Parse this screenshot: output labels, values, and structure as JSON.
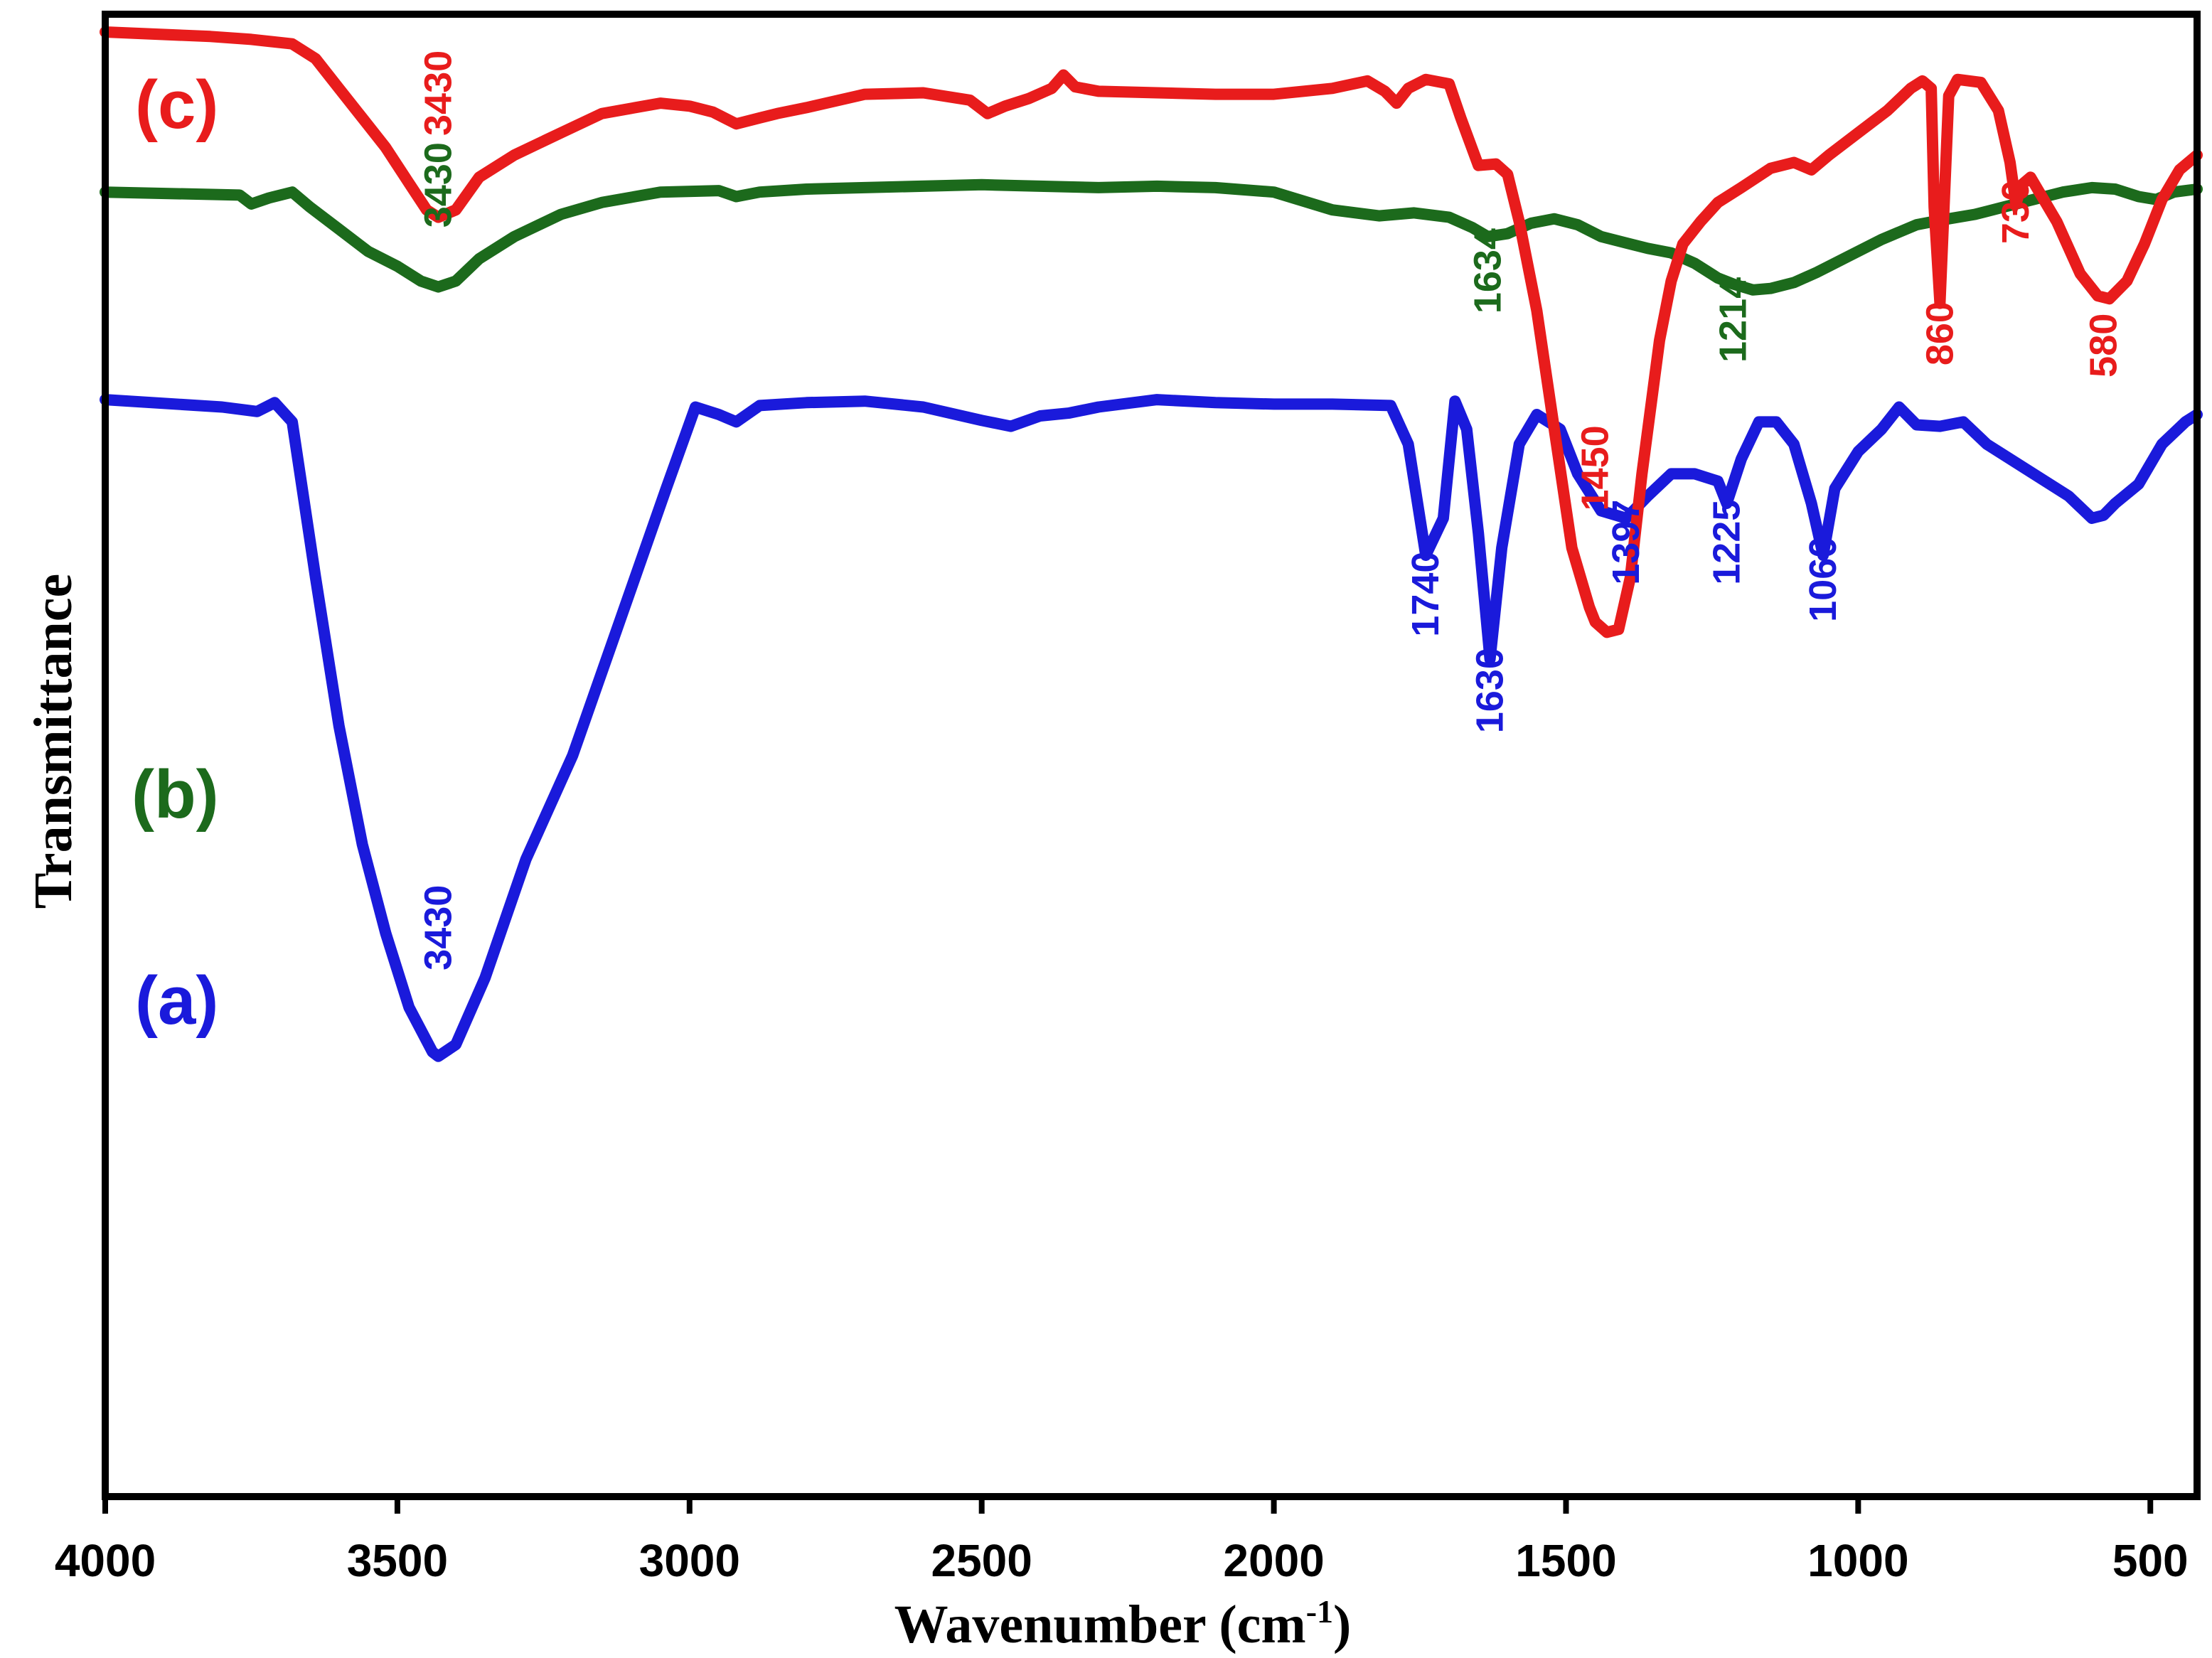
{
  "chart_data": {
    "type": "line",
    "title": "",
    "xlabel": "Wavenumber (cm",
    "xlabel_sup": "-1",
    "xlabel_close": ")",
    "ylabel": "Transmittance",
    "xlim": [
      4000,
      420
    ],
    "x_reversed": true,
    "ylim": [
      0,
      100
    ],
    "grid": false,
    "x_ticks": [
      4000,
      3500,
      3000,
      2500,
      2000,
      1500,
      1000,
      500
    ],
    "x_tick_labels": [
      "4000",
      "3500",
      "3000",
      "2500",
      "2000",
      "1500",
      "1000",
      "500"
    ],
    "series": [
      {
        "name": "(a)",
        "color": "#1a1adb",
        "points": [
          [
            4000,
            74
          ],
          [
            3800,
            73.5
          ],
          [
            3740,
            73.2
          ],
          [
            3710,
            73.8
          ],
          [
            3680,
            72.5
          ],
          [
            3640,
            62
          ],
          [
            3600,
            52
          ],
          [
            3560,
            44
          ],
          [
            3520,
            38
          ],
          [
            3480,
            33
          ],
          [
            3440,
            30
          ],
          [
            3430,
            29.7
          ],
          [
            3400,
            30.5
          ],
          [
            3350,
            35
          ],
          [
            3280,
            43
          ],
          [
            3200,
            50
          ],
          [
            3120,
            59
          ],
          [
            3040,
            68
          ],
          [
            2990,
            73.5
          ],
          [
            2950,
            73
          ],
          [
            2920,
            72.5
          ],
          [
            2880,
            73.6
          ],
          [
            2800,
            73.8
          ],
          [
            2700,
            73.9
          ],
          [
            2600,
            73.5
          ],
          [
            2500,
            72.6
          ],
          [
            2450,
            72.2
          ],
          [
            2400,
            72.9
          ],
          [
            2350,
            73.1
          ],
          [
            2300,
            73.5
          ],
          [
            2200,
            74
          ],
          [
            2100,
            73.8
          ],
          [
            2000,
            73.7
          ],
          [
            1900,
            73.7
          ],
          [
            1800,
            73.6
          ],
          [
            1770,
            71
          ],
          [
            1740,
            63.5
          ],
          [
            1710,
            66
          ],
          [
            1690,
            73.9
          ],
          [
            1670,
            72
          ],
          [
            1650,
            65
          ],
          [
            1630,
            56.5
          ],
          [
            1610,
            64
          ],
          [
            1580,
            71
          ],
          [
            1550,
            73
          ],
          [
            1510,
            72
          ],
          [
            1480,
            69
          ],
          [
            1440,
            66.5
          ],
          [
            1397,
            66
          ],
          [
            1360,
            67.5
          ],
          [
            1320,
            69
          ],
          [
            1280,
            69
          ],
          [
            1240,
            68.5
          ],
          [
            1225,
            67
          ],
          [
            1200,
            70
          ],
          [
            1170,
            72.5
          ],
          [
            1140,
            72.5
          ],
          [
            1110,
            71
          ],
          [
            1080,
            67
          ],
          [
            1060,
            63.5
          ],
          [
            1040,
            68
          ],
          [
            1000,
            70.5
          ],
          [
            960,
            72
          ],
          [
            930,
            73.5
          ],
          [
            900,
            72.3
          ],
          [
            860,
            72.2
          ],
          [
            820,
            72.5
          ],
          [
            780,
            71
          ],
          [
            700,
            69
          ],
          [
            640,
            67.5
          ],
          [
            600,
            66
          ],
          [
            580,
            66.2
          ],
          [
            560,
            67
          ],
          [
            520,
            68.3
          ],
          [
            480,
            71
          ],
          [
            440,
            72.5
          ],
          [
            420,
            73
          ]
        ]
      },
      {
        "name": "(b)",
        "color": "#1c6a1c",
        "points": [
          [
            4000,
            88
          ],
          [
            3770,
            87.8
          ],
          [
            3750,
            87.2
          ],
          [
            3720,
            87.6
          ],
          [
            3680,
            88
          ],
          [
            3650,
            87
          ],
          [
            3600,
            85.5
          ],
          [
            3550,
            84
          ],
          [
            3500,
            83
          ],
          [
            3460,
            82
          ],
          [
            3430,
            81.6
          ],
          [
            3400,
            82
          ],
          [
            3360,
            83.5
          ],
          [
            3300,
            85
          ],
          [
            3220,
            86.5
          ],
          [
            3150,
            87.3
          ],
          [
            3050,
            88
          ],
          [
            2950,
            88.1
          ],
          [
            2920,
            87.7
          ],
          [
            2880,
            88
          ],
          [
            2800,
            88.2
          ],
          [
            2700,
            88.3
          ],
          [
            2500,
            88.5
          ],
          [
            2400,
            88.4
          ],
          [
            2300,
            88.3
          ],
          [
            2200,
            88.4
          ],
          [
            2100,
            88.3
          ],
          [
            2000,
            88
          ],
          [
            1900,
            86.8
          ],
          [
            1820,
            86.4
          ],
          [
            1760,
            86.6
          ],
          [
            1700,
            86.3
          ],
          [
            1660,
            85.6
          ],
          [
            1634,
            85
          ],
          [
            1600,
            85.2
          ],
          [
            1560,
            85.9
          ],
          [
            1520,
            86.2
          ],
          [
            1480,
            85.8
          ],
          [
            1440,
            85
          ],
          [
            1400,
            84.6
          ],
          [
            1360,
            84.2
          ],
          [
            1320,
            83.9
          ],
          [
            1280,
            83.2
          ],
          [
            1240,
            82.2
          ],
          [
            1214,
            81.8
          ],
          [
            1180,
            81.4
          ],
          [
            1150,
            81.5
          ],
          [
            1110,
            81.9
          ],
          [
            1070,
            82.6
          ],
          [
            1020,
            83.6
          ],
          [
            960,
            84.8
          ],
          [
            900,
            85.8
          ],
          [
            860,
            86.1
          ],
          [
            800,
            86.5
          ],
          [
            750,
            87
          ],
          [
            700,
            87.5
          ],
          [
            650,
            88
          ],
          [
            600,
            88.3
          ],
          [
            560,
            88.2
          ],
          [
            520,
            87.7
          ],
          [
            490,
            87.5
          ],
          [
            460,
            88
          ],
          [
            420,
            88.2
          ]
        ]
      },
      {
        "name": "(c)",
        "color": "#e81c1c",
        "points": [
          [
            4000,
            98.8
          ],
          [
            3820,
            98.5
          ],
          [
            3750,
            98.3
          ],
          [
            3680,
            98
          ],
          [
            3640,
            97
          ],
          [
            3600,
            95
          ],
          [
            3560,
            93
          ],
          [
            3520,
            91
          ],
          [
            3480,
            88.6
          ],
          [
            3450,
            86.8
          ],
          [
            3430,
            86.3
          ],
          [
            3400,
            86.8
          ],
          [
            3360,
            89
          ],
          [
            3300,
            90.5
          ],
          [
            3220,
            92
          ],
          [
            3150,
            93.3
          ],
          [
            3050,
            94
          ],
          [
            3000,
            93.8
          ],
          [
            2960,
            93.4
          ],
          [
            2920,
            92.6
          ],
          [
            2880,
            93
          ],
          [
            2850,
            93.3
          ],
          [
            2800,
            93.7
          ],
          [
            2700,
            94.6
          ],
          [
            2600,
            94.7
          ],
          [
            2520,
            94.2
          ],
          [
            2490,
            93.3
          ],
          [
            2460,
            93.8
          ],
          [
            2420,
            94.3
          ],
          [
            2380,
            95
          ],
          [
            2360,
            95.9
          ],
          [
            2340,
            95.1
          ],
          [
            2300,
            94.8
          ],
          [
            2200,
            94.7
          ],
          [
            2100,
            94.6
          ],
          [
            2000,
            94.6
          ],
          [
            1900,
            95
          ],
          [
            1840,
            95.5
          ],
          [
            1810,
            94.8
          ],
          [
            1790,
            94
          ],
          [
            1770,
            95
          ],
          [
            1740,
            95.6
          ],
          [
            1700,
            95.3
          ],
          [
            1680,
            93
          ],
          [
            1650,
            89.8
          ],
          [
            1620,
            89.9
          ],
          [
            1600,
            89.2
          ],
          [
            1580,
            86
          ],
          [
            1550,
            80
          ],
          [
            1520,
            72
          ],
          [
            1490,
            64
          ],
          [
            1460,
            60
          ],
          [
            1450,
            59
          ],
          [
            1430,
            58.3
          ],
          [
            1410,
            58.5
          ],
          [
            1390,
            62
          ],
          [
            1370,
            69
          ],
          [
            1340,
            78
          ],
          [
            1320,
            82
          ],
          [
            1300,
            84.5
          ],
          [
            1270,
            86
          ],
          [
            1240,
            87.3
          ],
          [
            1200,
            88.3
          ],
          [
            1150,
            89.6
          ],
          [
            1110,
            90
          ],
          [
            1080,
            89.5
          ],
          [
            1050,
            90.5
          ],
          [
            1000,
            92
          ],
          [
            950,
            93.5
          ],
          [
            910,
            95
          ],
          [
            890,
            95.5
          ],
          [
            875,
            95
          ],
          [
            870,
            87
          ],
          [
            860,
            80.5
          ],
          [
            852,
            88
          ],
          [
            845,
            94.5
          ],
          [
            830,
            95.6
          ],
          [
            790,
            95.4
          ],
          [
            760,
            93.5
          ],
          [
            740,
            90
          ],
          [
            730,
            87.2
          ],
          [
            720,
            88.5
          ],
          [
            705,
            89
          ],
          [
            690,
            88
          ],
          [
            660,
            86
          ],
          [
            620,
            82.5
          ],
          [
            590,
            81
          ],
          [
            570,
            80.8
          ],
          [
            540,
            82
          ],
          [
            510,
            84.5
          ],
          [
            480,
            87.5
          ],
          [
            450,
            89.5
          ],
          [
            420,
            90.5
          ]
        ]
      }
    ],
    "series_labels": [
      "(a)",
      "(b)",
      "(c)"
    ],
    "peak_labels": [
      {
        "series": "(a)",
        "text": "3430",
        "x": 3430,
        "y": 35.5
      },
      {
        "series": "(a)",
        "text": "1740",
        "x": 1740,
        "y": 58
      },
      {
        "series": "(a)",
        "text": "1630",
        "x": 1630,
        "y": 51.5
      },
      {
        "series": "(a)",
        "text": "1397",
        "x": 1397,
        "y": 61.5
      },
      {
        "series": "(a)",
        "text": "1225",
        "x": 1225,
        "y": 61.5
      },
      {
        "series": "(a)",
        "text": "1060",
        "x": 1060,
        "y": 59
      },
      {
        "series": "(b)",
        "text": "3430",
        "x": 3430,
        "y": 85.6
      },
      {
        "series": "(b)",
        "text": "1634",
        "x": 1634,
        "y": 79.8
      },
      {
        "series": "(b)",
        "text": "1214",
        "x": 1214,
        "y": 76.5
      },
      {
        "series": "(c)",
        "text": "3430",
        "x": 3430,
        "y": 91.8
      },
      {
        "series": "(c)",
        "text": "1450",
        "x": 1450,
        "y": 66.5
      },
      {
        "series": "(c)",
        "text": "860",
        "x": 860,
        "y": 76.3
      },
      {
        "series": "(c)",
        "text": "730",
        "x": 730,
        "y": 84.5
      },
      {
        "series": "(c)",
        "text": "580",
        "x": 580,
        "y": 75.5
      }
    ]
  }
}
